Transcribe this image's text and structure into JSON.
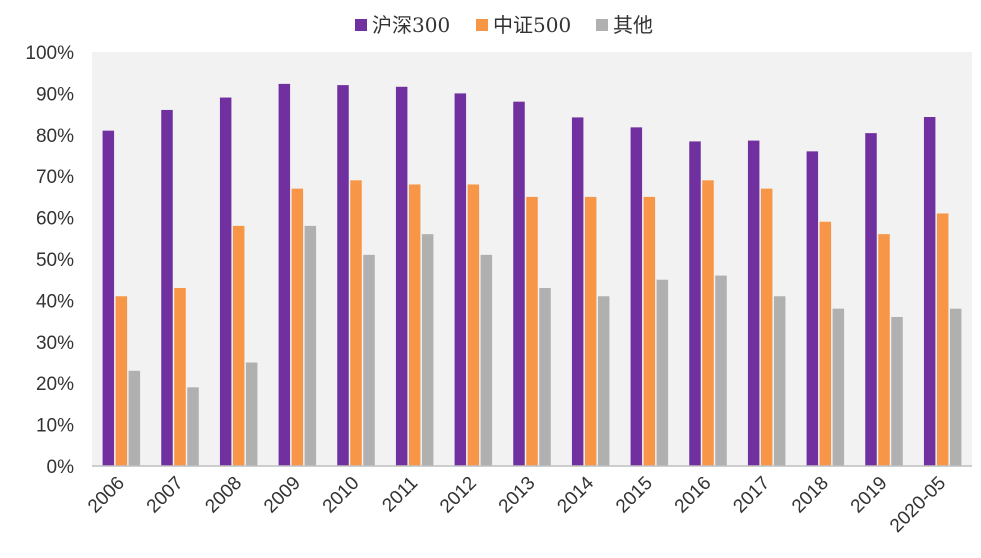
{
  "chart_data": {
    "type": "bar",
    "title": "",
    "xlabel": "",
    "ylabel": "",
    "ylim": [
      0,
      100
    ],
    "y_ticks": [
      "0%",
      "10%",
      "20%",
      "30%",
      "40%",
      "50%",
      "60%",
      "70%",
      "80%",
      "90%",
      "100%"
    ],
    "grid": false,
    "legend_position": "top-center",
    "background": "#f2f2f2",
    "categories": [
      "2006",
      "2007",
      "2008",
      "2009",
      "2010",
      "2011",
      "2012",
      "2013",
      "2014",
      "2015",
      "2016",
      "2017",
      "2018",
      "2019",
      "2020-05"
    ],
    "series": [
      {
        "name": "沪深300",
        "color": "#7030a0",
        "values": [
          81,
          86,
          89,
          92.3,
          92,
          91.6,
          90,
          88,
          84.2,
          81.8,
          78.4,
          78.6,
          76,
          80.4,
          84.3
        ]
      },
      {
        "name": "中证500",
        "color": "#f79646",
        "values": [
          41,
          43,
          58,
          67,
          69,
          68,
          68,
          65,
          65,
          65,
          69,
          67,
          59,
          56,
          61
        ]
      },
      {
        "name": "其他",
        "color": "#b0b0b0",
        "values": [
          23,
          19,
          25,
          58,
          51,
          56,
          51,
          43,
          41,
          45,
          46,
          41,
          38,
          36,
          38
        ]
      }
    ]
  }
}
